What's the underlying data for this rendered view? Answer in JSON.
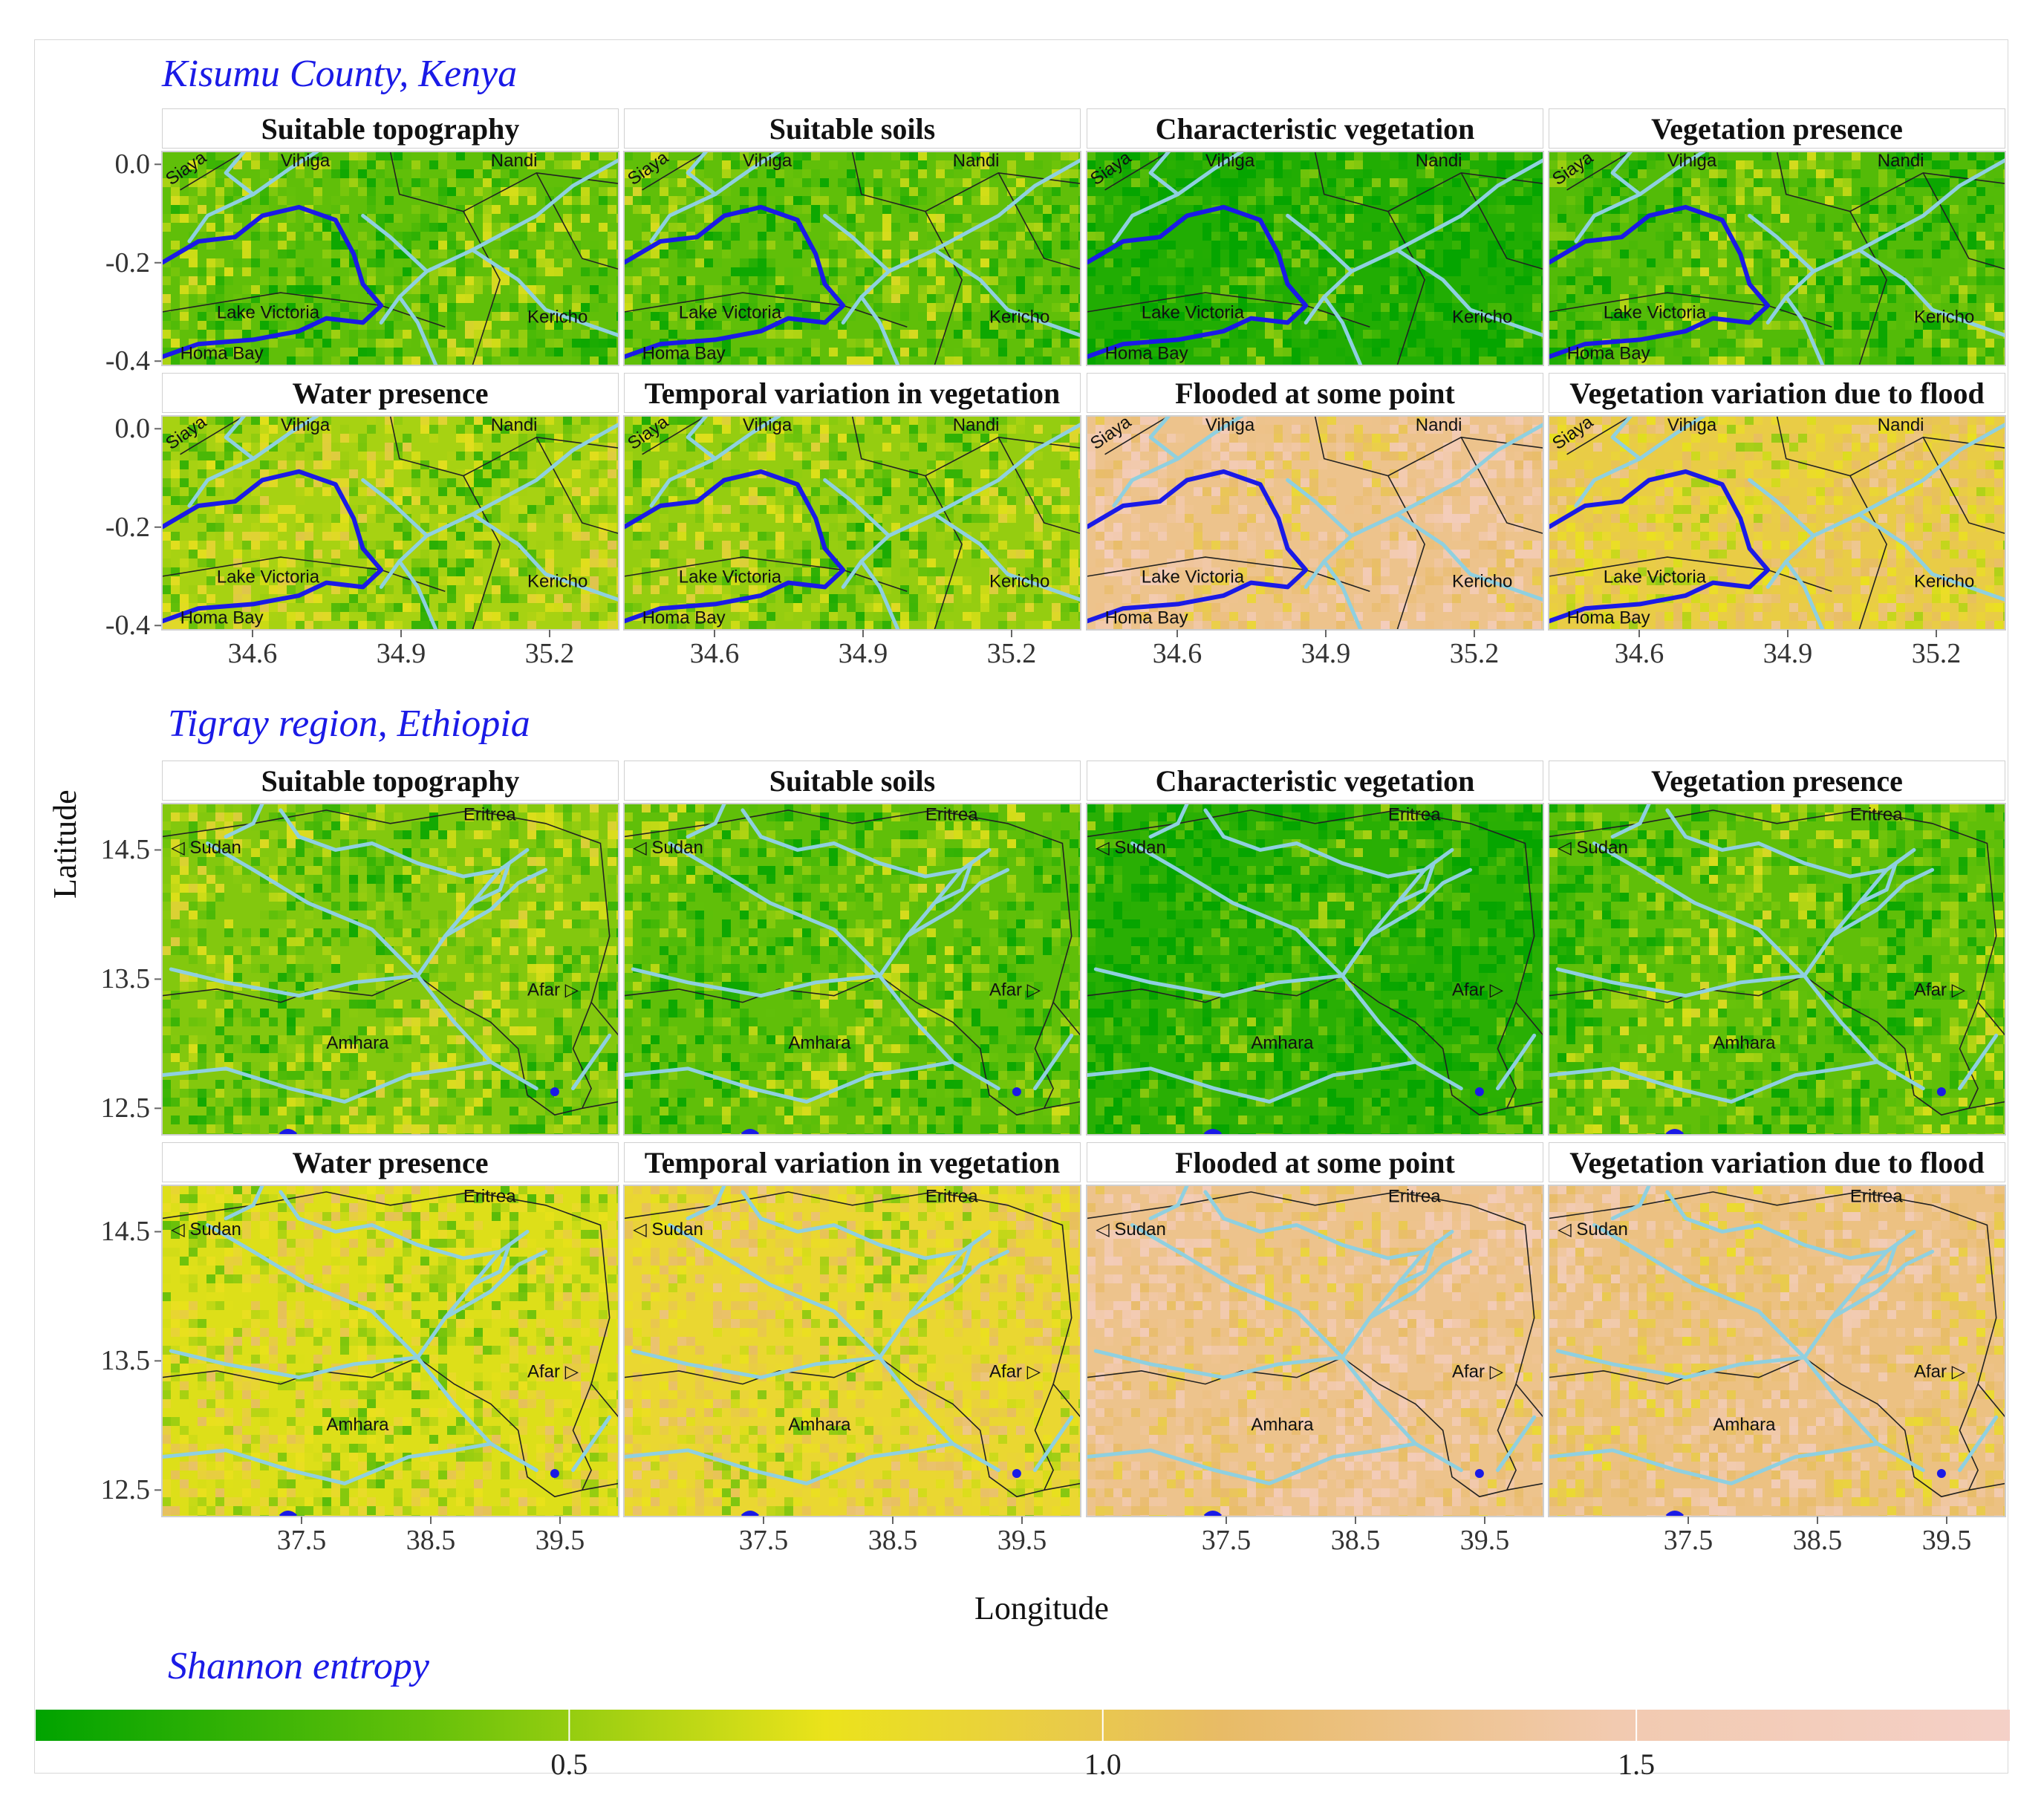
{
  "figure": {
    "ylabel": "Latitude",
    "xlabel": "Longitude",
    "legend_title": "Shannon entropy",
    "colorbar": {
      "ticks": [
        0.5,
        1.0,
        1.5
      ],
      "tick_labels": [
        "0.5",
        "1.0",
        "1.5"
      ],
      "range": [
        0,
        1.85
      ],
      "colors": [
        "#00a300",
        "#66c10a",
        "#ebe31b",
        "#e8bb66",
        "#f2cab0",
        "#f4d0c7"
      ]
    }
  },
  "panel_titles": [
    "Suitable topography",
    "Suitable soils",
    "Characteristic vegetation",
    "Vegetation presence",
    "Water presence",
    "Temporal variation in vegetation",
    "Flooded at some point",
    "Vegetation variation due to flood"
  ],
  "regions": [
    {
      "title": "Kisumu County, Kenya",
      "y_ticks": [
        "0.0",
        "-0.2",
        "-0.4"
      ],
      "x_ticks": [
        "34.6",
        "34.9",
        "35.2"
      ],
      "map_labels": [
        "Siaya",
        "Vihiga",
        "Nandi",
        "Lake Victoria",
        "Kericho",
        "Homa Bay"
      ],
      "mean_entropy": [
        0.35,
        0.35,
        0.12,
        0.3,
        0.55,
        0.5,
        1.3,
        0.95
      ]
    },
    {
      "title": "Tigray region, Ethiopia",
      "y_ticks": [
        "14.5",
        "13.5",
        "12.5"
      ],
      "x_ticks": [
        "37.5",
        "38.5",
        "39.5"
      ],
      "map_labels": [
        "Sudan",
        "Eritrea",
        "Afar",
        "Amhara"
      ],
      "mean_entropy": [
        0.45,
        0.35,
        0.15,
        0.35,
        0.7,
        0.85,
        1.3,
        1.25
      ]
    }
  ]
}
